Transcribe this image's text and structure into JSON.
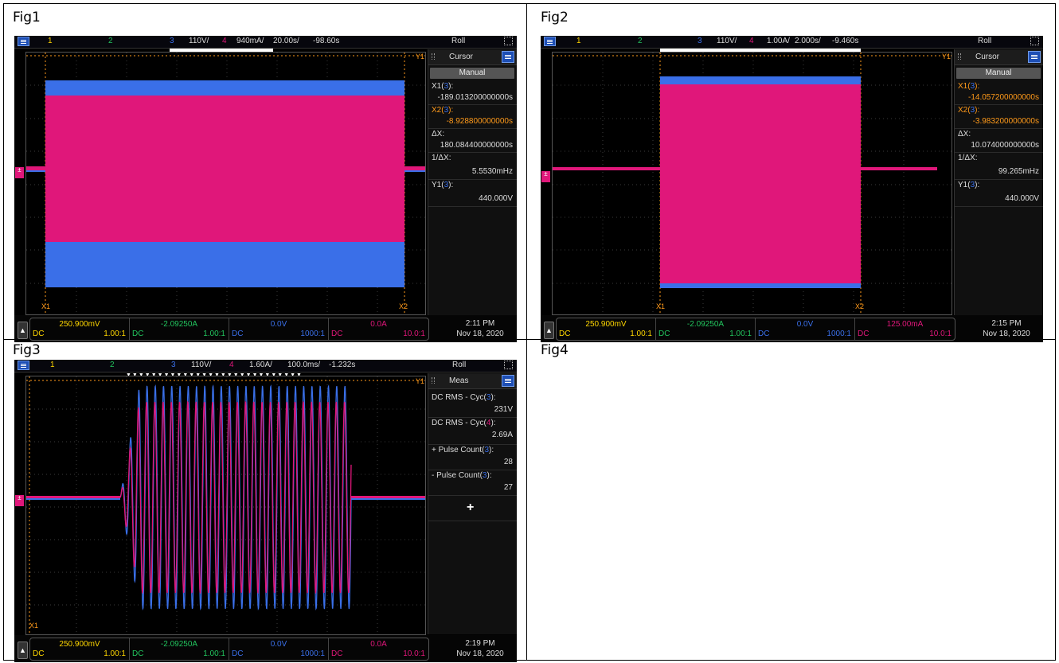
{
  "figures": [
    {
      "label": "Fig1",
      "top": {
        "ch1": "1",
        "ch2": "2",
        "ch3": "3",
        "ch3_scale": "110V/",
        "ch4": "4",
        "ch4_scale": "940mA/",
        "timebase": "20.00s/",
        "delay": "-98.60s",
        "mode": "Roll"
      },
      "panel": {
        "title": "Cursor",
        "mode": "Manual",
        "items": [
          {
            "k1": "X1(",
            "k2": "3",
            "k3": "):",
            "v": "-189.013200000000s",
            "orange": false
          },
          {
            "k1": "X2(",
            "k2": "3",
            "k3": "):",
            "v": "-8.928800000000s",
            "orange": true
          },
          {
            "k1": "ΔX:",
            "k2": "",
            "k3": "",
            "v": "180.084400000000s",
            "orange": false
          },
          {
            "k1": "1/ΔX:",
            "k2": "",
            "k3": "",
            "v": "5.5530mHz",
            "orange": false
          },
          {
            "k1": "Y1(",
            "k2": "3",
            "k3": "):",
            "v": "440.000V",
            "orange": false
          }
        ]
      },
      "bottom": {
        "ch1": {
          "val": "250.900mV",
          "coupling": "DC",
          "ratio": "1.00:1"
        },
        "ch2": {
          "val": "-2.09250A",
          "coupling": "DC",
          "ratio": "1.00:1"
        },
        "ch3": {
          "val": "0.0V",
          "coupling": "DC",
          "ratio": "1000:1"
        },
        "ch4": {
          "val": "0.0A",
          "coupling": "DC",
          "ratio": "10.0:1"
        }
      },
      "clock": {
        "time": "2:11 PM",
        "date": "Nov 18, 2020"
      },
      "markers": {
        "y1": "Y1",
        "x1": "X1",
        "x2": "X2"
      }
    },
    {
      "label": "Fig2",
      "top": {
        "ch1": "1",
        "ch2": "2",
        "ch3": "3",
        "ch3_scale": "110V/",
        "ch4": "4",
        "ch4_scale": "1.00A/",
        "timebase": "2.000s/",
        "delay": "-9.460s",
        "mode": "Roll"
      },
      "panel": {
        "title": "Cursor",
        "mode": "Manual",
        "items": [
          {
            "k1": "X1(",
            "k2": "3",
            "k3": "):",
            "v": "-14.057200000000s",
            "orange": true
          },
          {
            "k1": "X2(",
            "k2": "3",
            "k3": "):",
            "v": "-3.983200000000s",
            "orange": true
          },
          {
            "k1": "ΔX:",
            "k2": "",
            "k3": "",
            "v": "10.074000000000s",
            "orange": false
          },
          {
            "k1": "1/ΔX:",
            "k2": "",
            "k3": "",
            "v": "99.265mHz",
            "orange": false
          },
          {
            "k1": "Y1(",
            "k2": "3",
            "k3": "):",
            "v": "440.000V",
            "orange": false
          }
        ]
      },
      "bottom": {
        "ch1": {
          "val": "250.900mV",
          "coupling": "DC",
          "ratio": "1.00:1"
        },
        "ch2": {
          "val": "-2.09250A",
          "coupling": "DC",
          "ratio": "1.00:1"
        },
        "ch3": {
          "val": "0.0V",
          "coupling": "DC",
          "ratio": "1000:1"
        },
        "ch4": {
          "val": "125.00mA",
          "coupling": "DC",
          "ratio": "10.0:1"
        }
      },
      "clock": {
        "time": "2:15 PM",
        "date": "Nov 18, 2020"
      },
      "markers": {
        "y1": "Y1",
        "x1": "X1",
        "x2": "X2"
      }
    },
    {
      "label": "Fig3",
      "top": {
        "ch1": "1",
        "ch2": "2",
        "ch3": "3",
        "ch3_scale": "110V/",
        "ch4": "4",
        "ch4_scale": "1.60A/",
        "timebase": "100.0ms/",
        "delay": "-1.232s",
        "mode": "Roll"
      },
      "panel": {
        "title": "Meas",
        "items": [
          {
            "k1": "DC RMS - Cyc(",
            "k2": "3",
            "k3": "):",
            "v": "231V"
          },
          {
            "k1": "DC RMS - Cyc(",
            "k2": "4",
            "k3": "):",
            "v": "2.69A"
          },
          {
            "k1": "+ Pulse Count(",
            "k2": "3",
            "k3": "):",
            "v": "28"
          },
          {
            "k1": "- Pulse Count(",
            "k2": "3",
            "k3": "):",
            "v": "27"
          }
        ],
        "plus": "+"
      },
      "bottom": {
        "ch1": {
          "val": "250.900mV",
          "coupling": "DC",
          "ratio": "1.00:1"
        },
        "ch2": {
          "val": "-2.09250A",
          "coupling": "DC",
          "ratio": "1.00:1"
        },
        "ch3": {
          "val": "0.0V",
          "coupling": "DC",
          "ratio": "1000:1"
        },
        "ch4": {
          "val": "0.0A",
          "coupling": "DC",
          "ratio": "10.0:1"
        }
      },
      "clock": {
        "time": "2:19 PM",
        "date": "Nov 18, 2020"
      },
      "markers": {
        "y1": "Y1",
        "x1": "X1"
      }
    },
    {
      "label": "Fig4"
    }
  ],
  "colors": {
    "ch1": "#ffd700",
    "ch2": "#22c55e",
    "ch3": "#3a6fe8",
    "ch4": "#e0177a",
    "cursor": "#ff9a1a"
  },
  "icons": [
    "menu-icon",
    "roll-mode-icon",
    "up-arrow-icon",
    "ground-marker-icon"
  ]
}
